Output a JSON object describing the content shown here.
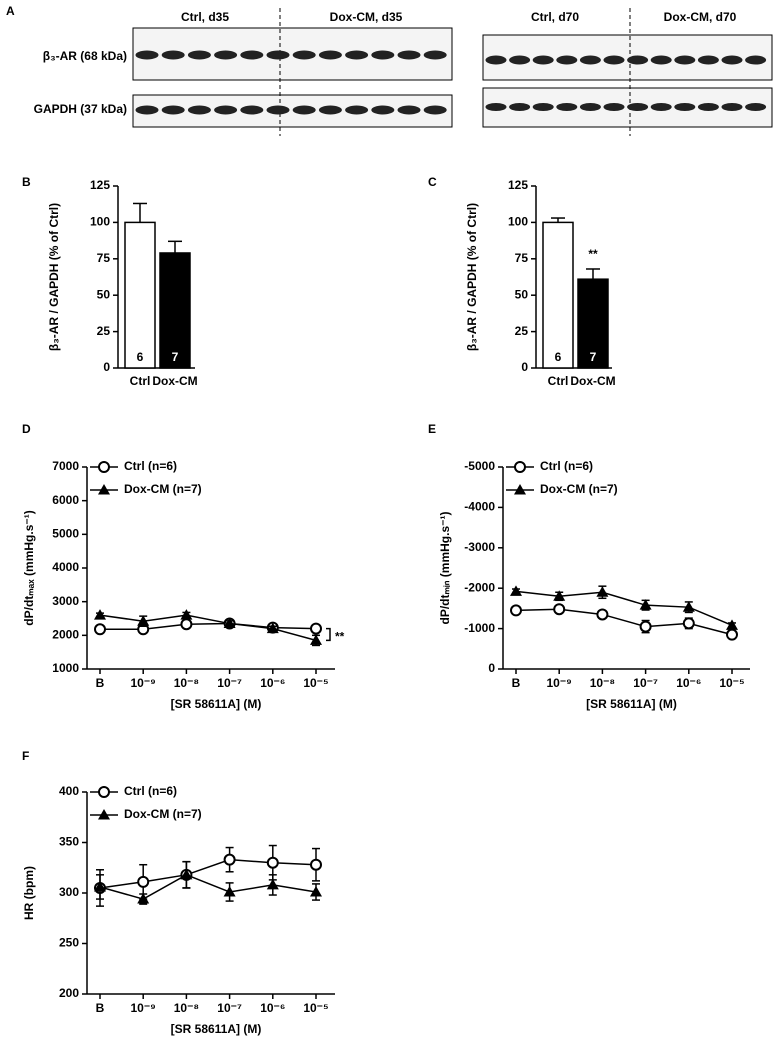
{
  "blot": {
    "label": "A",
    "lane_groups": [
      "Ctrl, d35",
      "Dox-CM, d35",
      "Ctrl, d70",
      "Dox-CM, d70"
    ],
    "rows": [
      "β₃-AR (68 kDa)",
      "GAPDH (37 kDa)"
    ]
  },
  "chart_data": [
    {
      "type": "bar",
      "label": "B",
      "ylabel": "β₃-AR / GAPDH (% of Ctrl)",
      "categories": [
        "Ctrl",
        "Dox-CM"
      ],
      "values": [
        100,
        79
      ],
      "errors": [
        13,
        8
      ],
      "colors": [
        "#ffffff",
        "#000000"
      ],
      "n_labels": [
        "6",
        "7"
      ],
      "ylim": [
        0,
        125
      ],
      "yticks": [
        0,
        25,
        50,
        75,
        100,
        125
      ]
    },
    {
      "type": "bar",
      "label": "C",
      "ylabel": "β₃-AR / GAPDH (% of Ctrl)",
      "categories": [
        "Ctrl",
        "Dox-CM"
      ],
      "values": [
        100,
        61
      ],
      "errors": [
        3,
        7
      ],
      "colors": [
        "#ffffff",
        "#000000"
      ],
      "n_labels": [
        "6",
        "7"
      ],
      "value_annotations": [
        null,
        "**"
      ],
      "ylim": [
        0,
        125
      ],
      "yticks": [
        0,
        25,
        50,
        75,
        100,
        125
      ]
    },
    {
      "type": "line",
      "label": "D",
      "ylabel": "dP/dtₘₐₓ (mmHg.s⁻¹)",
      "xlabel": "[SR 58611A] (M)",
      "categories": [
        "B",
        "10⁻⁹",
        "10⁻⁸",
        "10⁻⁷",
        "10⁻⁶",
        "10⁻⁵"
      ],
      "series": [
        {
          "name": "Ctrl (n=6)",
          "marker": "circle",
          "color": "#000000",
          "values": [
            2180,
            2180,
            2330,
            2350,
            2230,
            2200
          ],
          "errors": [
            80,
            80,
            100,
            100,
            80,
            80
          ]
        },
        {
          "name": "Dox-CM (n=7)",
          "marker": "triangle",
          "color": "#000000",
          "values": [
            2600,
            2420,
            2600,
            2350,
            2200,
            1850
          ],
          "errors": [
            60,
            150,
            80,
            80,
            70,
            150
          ]
        }
      ],
      "annotation": "**",
      "ylim": [
        1000,
        7000
      ],
      "yticks": [
        1000,
        2000,
        3000,
        4000,
        5000,
        6000,
        7000
      ]
    },
    {
      "type": "line",
      "label": "E",
      "ylabel": "dP/dtₘᵢₙ (mmHg.s⁻¹)",
      "xlabel": "[SR 58611A] (M)",
      "categories": [
        "B",
        "10⁻⁹",
        "10⁻⁸",
        "10⁻⁷",
        "10⁻⁶",
        "10⁻⁵"
      ],
      "series": [
        {
          "name": "Ctrl (n=6)",
          "marker": "circle",
          "color": "#000000",
          "values": [
            -1450,
            -1480,
            -1350,
            -1050,
            -1130,
            -850
          ],
          "errors": [
            60,
            60,
            90,
            150,
            130,
            60
          ]
        },
        {
          "name": "Dox-CM (n=7)",
          "marker": "triangle",
          "color": "#000000",
          "values": [
            -1920,
            -1800,
            -1900,
            -1580,
            -1530,
            -1080
          ],
          "errors": [
            60,
            100,
            150,
            120,
            130,
            60
          ]
        }
      ],
      "ylim": [
        0,
        -5000
      ],
      "yticks": [
        0,
        -1000,
        -2000,
        -3000,
        -4000,
        -5000
      ]
    },
    {
      "type": "line",
      "label": "F",
      "ylabel": "HR (bpm)",
      "xlabel": "[SR 58611A] (M)",
      "categories": [
        "B",
        "10⁻⁹",
        "10⁻⁸",
        "10⁻⁷",
        "10⁻⁶",
        "10⁻⁵"
      ],
      "series": [
        {
          "name": "Ctrl (n=6)",
          "marker": "circle",
          "color": "#000000",
          "values": [
            305,
            311,
            318,
            333,
            330,
            328
          ],
          "errors": [
            18,
            17,
            13,
            12,
            17,
            16
          ]
        },
        {
          "name": "Dox-CM (n=7)",
          "marker": "triangle",
          "color": "#000000",
          "values": [
            306,
            294,
            318,
            301,
            308,
            301
          ],
          "errors": [
            12,
            5,
            13,
            9,
            10,
            8
          ]
        }
      ],
      "ylim": [
        200,
        400
      ],
      "yticks": [
        200,
        250,
        300,
        350,
        400
      ]
    }
  ]
}
